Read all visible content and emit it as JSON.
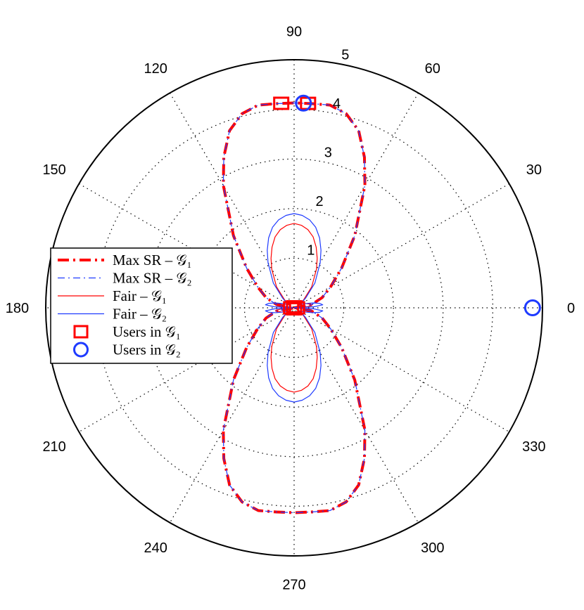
{
  "chart_data": {
    "type": "polar",
    "r_max": 5,
    "r_ticks": [
      "1",
      "2",
      "3",
      "4",
      "5"
    ],
    "theta_ticks": [
      "0",
      "30",
      "60",
      "90",
      "120",
      "150",
      "180",
      "210",
      "240",
      "270",
      "300",
      "330"
    ],
    "theta_unit": "degrees",
    "grid": true,
    "legend_position": "left",
    "series": [
      {
        "name": "Max SR – 𝒢₁",
        "style": "dash-dot-thick",
        "color": "#ff0000",
        "points": [
          [
            0,
            0
          ],
          [
            10,
            0.35
          ],
          [
            20,
            0.6
          ],
          [
            30,
            0.85
          ],
          [
            40,
            1.25
          ],
          [
            50,
            1.9
          ],
          [
            60,
            2.85
          ],
          [
            65,
            3.35
          ],
          [
            70,
            3.8
          ],
          [
            75,
            4.05
          ],
          [
            80,
            4.15
          ],
          [
            85,
            4.13
          ],
          [
            90,
            4.13
          ],
          [
            95,
            4.13
          ],
          [
            100,
            4.15
          ],
          [
            105,
            4.05
          ],
          [
            110,
            3.8
          ],
          [
            115,
            3.35
          ],
          [
            120,
            2.85
          ],
          [
            130,
            1.9
          ],
          [
            140,
            1.25
          ],
          [
            150,
            0.85
          ],
          [
            160,
            0.6
          ],
          [
            170,
            0.35
          ],
          [
            180,
            0
          ],
          [
            190,
            0.35
          ],
          [
            200,
            0.6
          ],
          [
            210,
            0.85
          ],
          [
            220,
            1.25
          ],
          [
            230,
            1.9
          ],
          [
            240,
            2.85
          ],
          [
            245,
            3.35
          ],
          [
            250,
            3.8
          ],
          [
            255,
            4.05
          ],
          [
            260,
            4.15
          ],
          [
            265,
            4.13
          ],
          [
            270,
            4.13
          ],
          [
            275,
            4.13
          ],
          [
            280,
            4.15
          ],
          [
            285,
            4.05
          ],
          [
            290,
            3.8
          ],
          [
            295,
            3.35
          ],
          [
            300,
            2.85
          ],
          [
            310,
            1.9
          ],
          [
            320,
            1.25
          ],
          [
            330,
            0.85
          ],
          [
            340,
            0.6
          ],
          [
            350,
            0.35
          ],
          [
            360,
            0
          ]
        ]
      },
      {
        "name": "Max SR – 𝒢₂",
        "style": "dash-dot-thin",
        "color": "#1f3bff",
        "points": [
          [
            0,
            0
          ],
          [
            10,
            0.35
          ],
          [
            20,
            0.6
          ],
          [
            30,
            0.85
          ],
          [
            40,
            1.25
          ],
          [
            50,
            1.9
          ],
          [
            60,
            2.85
          ],
          [
            65,
            3.35
          ],
          [
            70,
            3.8
          ],
          [
            75,
            4.05
          ],
          [
            80,
            4.15
          ],
          [
            85,
            4.13
          ],
          [
            90,
            4.13
          ],
          [
            95,
            4.13
          ],
          [
            100,
            4.15
          ],
          [
            105,
            4.05
          ],
          [
            110,
            3.8
          ],
          [
            115,
            3.35
          ],
          [
            120,
            2.85
          ],
          [
            130,
            1.9
          ],
          [
            140,
            1.25
          ],
          [
            150,
            0.85
          ],
          [
            160,
            0.6
          ],
          [
            170,
            0.35
          ],
          [
            180,
            0
          ],
          [
            190,
            0.35
          ],
          [
            200,
            0.6
          ],
          [
            210,
            0.85
          ],
          [
            220,
            1.25
          ],
          [
            230,
            1.9
          ],
          [
            240,
            2.85
          ],
          [
            245,
            3.35
          ],
          [
            250,
            3.8
          ],
          [
            255,
            4.05
          ],
          [
            260,
            4.15
          ],
          [
            265,
            4.13
          ],
          [
            270,
            4.13
          ],
          [
            275,
            4.13
          ],
          [
            280,
            4.15
          ],
          [
            285,
            4.05
          ],
          [
            290,
            3.8
          ],
          [
            295,
            3.35
          ],
          [
            300,
            2.85
          ],
          [
            310,
            1.9
          ],
          [
            320,
            1.25
          ],
          [
            330,
            0.85
          ],
          [
            340,
            0.6
          ],
          [
            350,
            0.35
          ],
          [
            360,
            0
          ]
        ]
      },
      {
        "name": "Fair – 𝒢₁",
        "style": "solid",
        "color": "#ff0000",
        "points": [
          [
            0,
            0.05
          ],
          [
            5,
            0.28
          ],
          [
            10,
            0.38
          ],
          [
            20,
            0.25
          ],
          [
            30,
            0.12
          ],
          [
            40,
            0.25
          ],
          [
            50,
            0.55
          ],
          [
            60,
            0.9
          ],
          [
            65,
            1.1
          ],
          [
            70,
            1.3
          ],
          [
            75,
            1.48
          ],
          [
            80,
            1.6
          ],
          [
            85,
            1.67
          ],
          [
            90,
            1.7
          ],
          [
            95,
            1.67
          ],
          [
            100,
            1.6
          ],
          [
            105,
            1.48
          ],
          [
            110,
            1.3
          ],
          [
            115,
            1.1
          ],
          [
            120,
            0.9
          ],
          [
            130,
            0.55
          ],
          [
            140,
            0.25
          ],
          [
            150,
            0.12
          ],
          [
            160,
            0.25
          ],
          [
            170,
            0.38
          ],
          [
            175,
            0.28
          ],
          [
            180,
            0.05
          ],
          [
            185,
            0.28
          ],
          [
            190,
            0.38
          ],
          [
            200,
            0.25
          ],
          [
            210,
            0.12
          ],
          [
            220,
            0.25
          ],
          [
            230,
            0.55
          ],
          [
            240,
            0.9
          ],
          [
            245,
            1.1
          ],
          [
            250,
            1.3
          ],
          [
            255,
            1.48
          ],
          [
            260,
            1.6
          ],
          [
            265,
            1.67
          ],
          [
            270,
            1.7
          ],
          [
            275,
            1.67
          ],
          [
            280,
            1.6
          ],
          [
            285,
            1.48
          ],
          [
            290,
            1.3
          ],
          [
            295,
            1.1
          ],
          [
            300,
            0.9
          ],
          [
            310,
            0.55
          ],
          [
            320,
            0.25
          ],
          [
            330,
            0.12
          ],
          [
            340,
            0.25
          ],
          [
            350,
            0.38
          ],
          [
            355,
            0.28
          ],
          [
            360,
            0.05
          ]
        ]
      },
      {
        "name": "Fair – 𝒢₂",
        "style": "solid",
        "color": "#1f3bff",
        "points": [
          [
            0,
            0.05
          ],
          [
            3,
            0.4
          ],
          [
            6,
            0.58
          ],
          [
            10,
            0.52
          ],
          [
            15,
            0.38
          ],
          [
            20,
            0.25
          ],
          [
            30,
            0.14
          ],
          [
            40,
            0.3
          ],
          [
            50,
            0.65
          ],
          [
            60,
            1.05
          ],
          [
            65,
            1.28
          ],
          [
            70,
            1.5
          ],
          [
            75,
            1.68
          ],
          [
            80,
            1.8
          ],
          [
            85,
            1.87
          ],
          [
            90,
            1.9
          ],
          [
            95,
            1.87
          ],
          [
            100,
            1.8
          ],
          [
            105,
            1.68
          ],
          [
            110,
            1.5
          ],
          [
            115,
            1.28
          ],
          [
            120,
            1.05
          ],
          [
            130,
            0.65
          ],
          [
            140,
            0.3
          ],
          [
            150,
            0.14
          ],
          [
            160,
            0.25
          ],
          [
            165,
            0.38
          ],
          [
            170,
            0.52
          ],
          [
            174,
            0.58
          ],
          [
            177,
            0.4
          ],
          [
            180,
            0.05
          ],
          [
            183,
            0.4
          ],
          [
            186,
            0.58
          ],
          [
            190,
            0.52
          ],
          [
            195,
            0.38
          ],
          [
            200,
            0.25
          ],
          [
            210,
            0.14
          ],
          [
            220,
            0.3
          ],
          [
            230,
            0.65
          ],
          [
            240,
            1.05
          ],
          [
            245,
            1.28
          ],
          [
            250,
            1.5
          ],
          [
            255,
            1.68
          ],
          [
            260,
            1.8
          ],
          [
            265,
            1.87
          ],
          [
            270,
            1.9
          ],
          [
            275,
            1.87
          ],
          [
            280,
            1.8
          ],
          [
            285,
            1.68
          ],
          [
            290,
            1.5
          ],
          [
            295,
            1.28
          ],
          [
            300,
            1.05
          ],
          [
            310,
            0.65
          ],
          [
            320,
            0.3
          ],
          [
            330,
            0.14
          ],
          [
            340,
            0.25
          ],
          [
            345,
            0.38
          ],
          [
            350,
            0.52
          ],
          [
            354,
            0.58
          ],
          [
            357,
            0.4
          ],
          [
            360,
            0.05
          ]
        ]
      }
    ],
    "markers": [
      {
        "name": "Users in 𝒢₁",
        "shape": "square",
        "color": "#ff0000",
        "points": [
          [
            90,
            0.02
          ],
          [
            270,
            0.02
          ],
          [
            0,
            0.06
          ],
          [
            180,
            0.06
          ],
          [
            93.6,
            4.13
          ],
          [
            86.1,
            4.13
          ]
        ]
      },
      {
        "name": "Users in 𝒢₂",
        "shape": "circle",
        "color": "#1f3bff",
        "points": [
          [
            0,
            4.8
          ],
          [
            87.4,
            4.13
          ]
        ]
      }
    ]
  }
}
